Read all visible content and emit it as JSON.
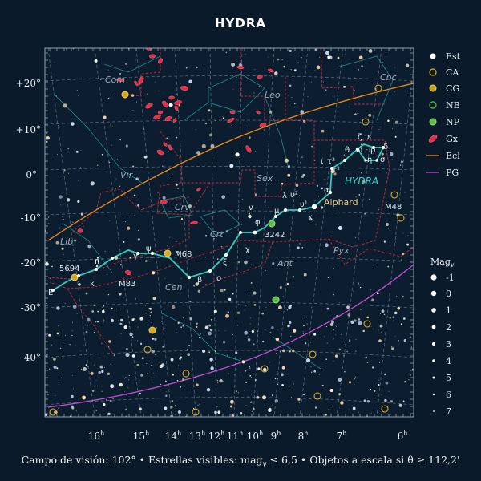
{
  "title": "HYDRA",
  "footer": "Campo de visión: 102°  •  Estrellas visibles: mag",
  "footer_v": "v",
  "footer_rest": " ≤ 6,5  •  Objetos a escala si θ ≥ 112,2'",
  "dec_labels": [
    "+20°",
    "+10°",
    "0°",
    "-10°",
    "-20°",
    "-30°",
    "-40°"
  ],
  "ra_labels": [
    {
      "h": "16",
      "s": "h"
    },
    {
      "h": "15",
      "s": "h"
    },
    {
      "h": "14",
      "s": "h"
    },
    {
      "h": "13",
      "s": "h"
    },
    {
      "h": "12",
      "s": "h"
    },
    {
      "h": "11",
      "s": "h"
    },
    {
      "h": "10",
      "s": "h"
    },
    {
      "h": "9",
      "s": "h"
    },
    {
      "h": "8",
      "s": "h"
    },
    {
      "h": "7",
      "s": "h"
    },
    {
      "h": "6",
      "s": "h"
    }
  ],
  "constellations": [
    "Com",
    "Leo",
    "Cnc",
    "Vir",
    "Sex",
    "HYDRA",
    "Crv",
    "Crt",
    "Lib",
    "Ant",
    "Pyx",
    "Cen"
  ],
  "star_labels": [
    "ζ",
    "ε",
    "θ",
    "ω",
    "ρ",
    "δ",
    "η",
    "σ",
    "ι",
    "τ²",
    "τ¹",
    "α",
    "Alphard",
    "λ",
    "υ²",
    "υ¹",
    "μ",
    "ν",
    "φ",
    "κ",
    "χ",
    "ξ",
    "β",
    "ο",
    "γ",
    "ψ",
    "π",
    "M68",
    "M83",
    "5694",
    "3242",
    "M48",
    "E"
  ],
  "legend": {
    "items": [
      "Est",
      "CA",
      "CG",
      "NB",
      "NP",
      "Gx",
      "Ecl",
      "PG"
    ],
    "mag_title": "Mag",
    "mag_sub": "v",
    "mags": [
      "-1",
      "0",
      "1",
      "2",
      "3",
      "4",
      "5",
      "6",
      "7"
    ]
  },
  "colors": {
    "background": "#0a1a2a",
    "hydra_line": "#2fd0c0",
    "ecliptic": "#f08a1a",
    "galactic_plane": "#c050d0",
    "boundary": "#c8283c",
    "grid": "#6a7d90",
    "galaxy": "#e0304a",
    "open_cluster": "#e0b020",
    "globular": "#c8a020",
    "nebula": "#3aa030"
  }
}
